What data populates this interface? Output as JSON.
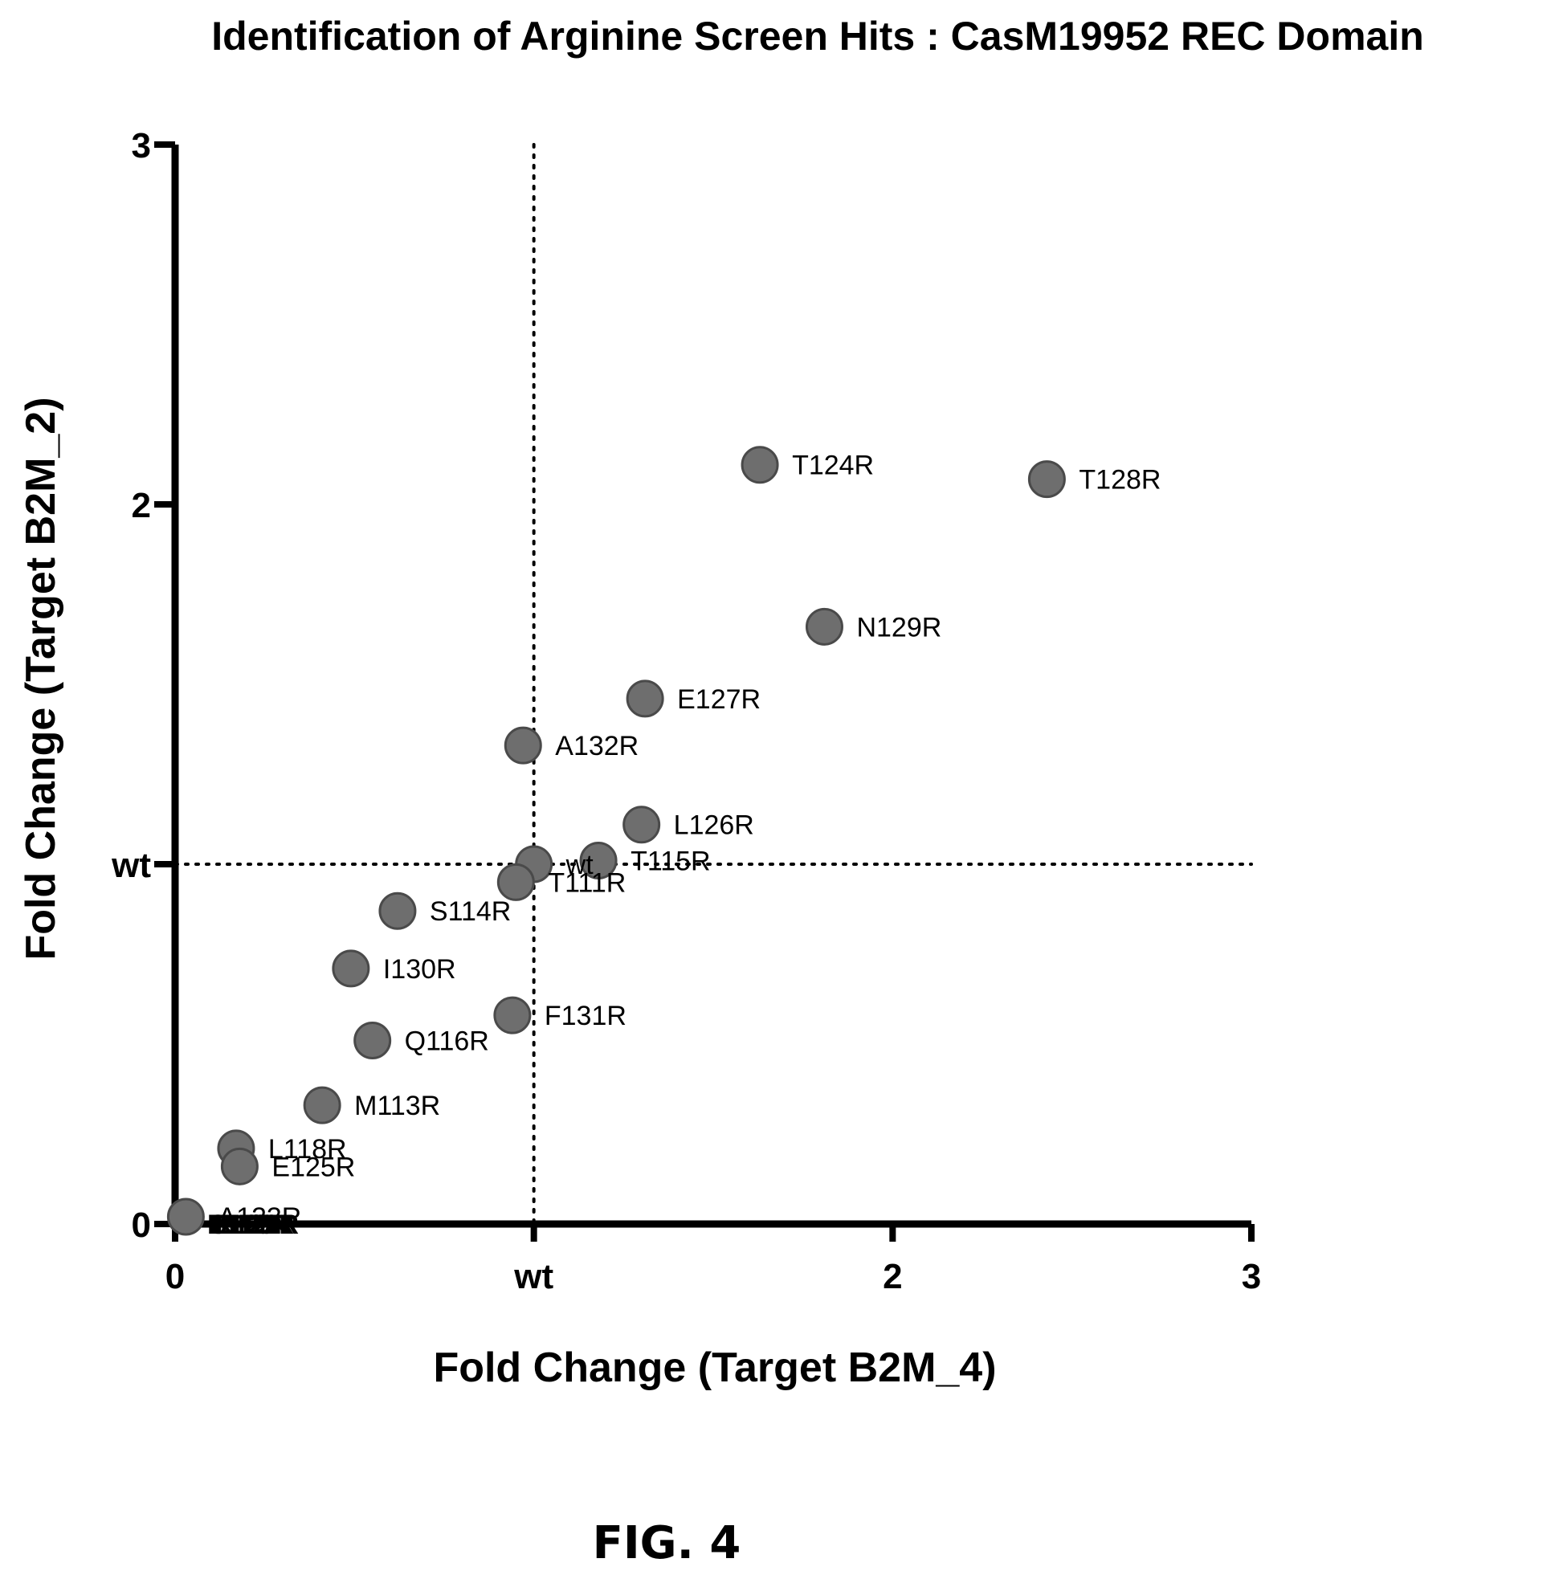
{
  "figure_caption": "FIG. 4",
  "colors": {
    "marker": "#6e6e6e",
    "marker_edge": "#4a4a4a",
    "axis": "#000000"
  },
  "chart_data": {
    "type": "scatter",
    "title": "Identification of Arginine Screen Hits : CasM19952 REC Domain",
    "xlabel": "Fold Change (Target B2M_4)",
    "ylabel": "Fold Change (Target B2M_2)",
    "xlim": [
      0,
      3
    ],
    "ylim": [
      0,
      3
    ],
    "x_ticks": [
      {
        "value": 0,
        "label": "0"
      },
      {
        "value": 1,
        "label": "wt"
      },
      {
        "value": 2,
        "label": "2"
      },
      {
        "value": 3,
        "label": "3"
      }
    ],
    "y_ticks": [
      {
        "value": 0,
        "label": "0"
      },
      {
        "value": 1,
        "label": "wt"
      },
      {
        "value": 2,
        "label": "2"
      },
      {
        "value": 3,
        "label": "3"
      }
    ],
    "reference_lines": {
      "x": 1,
      "y": 1,
      "style": "dotted"
    },
    "grid": false,
    "points": [
      {
        "label": "T124R",
        "x": 1.63,
        "y": 2.11
      },
      {
        "label": "T128R",
        "x": 2.43,
        "y": 2.07
      },
      {
        "label": "N129R",
        "x": 1.81,
        "y": 1.66
      },
      {
        "label": "E127R",
        "x": 1.31,
        "y": 1.46
      },
      {
        "label": "A132R",
        "x": 0.97,
        "y": 1.33
      },
      {
        "label": "L126R",
        "x": 1.3,
        "y": 1.11
      },
      {
        "label": "wt",
        "x": 1.0,
        "y": 1.0
      },
      {
        "label": "T115R",
        "x": 1.18,
        "y": 1.01
      },
      {
        "label": "T111R",
        "x": 0.95,
        "y": 0.95
      },
      {
        "label": "S114R",
        "x": 0.62,
        "y": 0.87
      },
      {
        "label": "I130R",
        "x": 0.49,
        "y": 0.71
      },
      {
        "label": "F131R",
        "x": 0.94,
        "y": 0.58
      },
      {
        "label": "Q116R",
        "x": 0.55,
        "y": 0.51
      },
      {
        "label": "M113R",
        "x": 0.41,
        "y": 0.33
      },
      {
        "label": "L118R",
        "x": 0.17,
        "y": 0.21
      },
      {
        "label": "E125R",
        "x": 0.18,
        "y": 0.16
      },
      {
        "label": "A123R",
        "x": 0.03,
        "y": 0.02
      }
    ],
    "overlapping_labels_at_origin": [
      "F112R",
      "S117R",
      "L119R",
      "L120R",
      "K121R",
      "E122R"
    ]
  }
}
